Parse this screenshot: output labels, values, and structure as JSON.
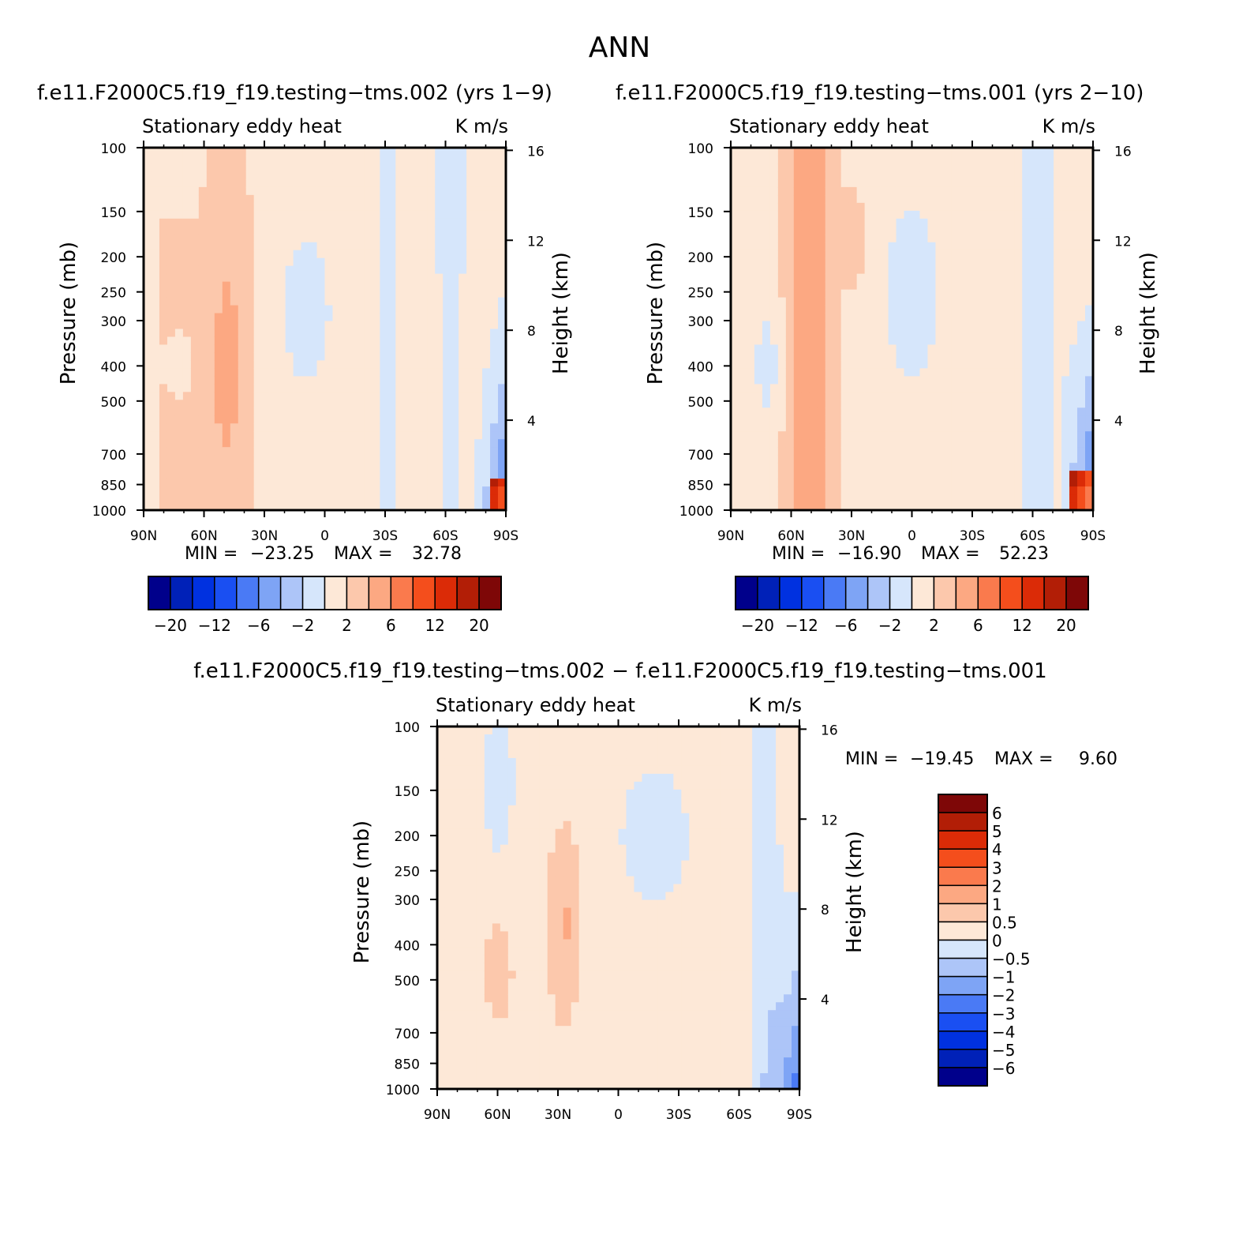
{
  "figure": {
    "title": "ANN",
    "panel_titles": [
      "f.e11.F2000C5.f19_f19.testing−tms.002 (yrs 1−9)",
      "f.e11.F2000C5.f19_f19.testing−tms.001 (yrs 2−10)",
      "f.e11.F2000C5.f19_f19.testing−tms.002 − f.e11.F2000C5.f19_f19.testing−tms.001"
    ]
  },
  "chart_data": [
    {
      "type": "heatmap",
      "variable": "Stationary eddy heat",
      "units": "K m/s",
      "xlabel": "",
      "ylabel": "Pressure (mb)",
      "ylabel_right": "Height (km)",
      "x_ticks": [
        "90N",
        "60N",
        "30N",
        "0",
        "30S",
        "60S",
        "90S"
      ],
      "y_ticks": [
        100,
        150,
        200,
        250,
        300,
        400,
        500,
        700,
        850,
        1000
      ],
      "y_ticks_right": [
        16,
        12,
        8,
        4
      ],
      "stats": {
        "min_label": "MIN =",
        "min": "−23.25",
        "max_label": "MAX =",
        "max": "32.78"
      },
      "colorbar": {
        "orientation": "horizontal",
        "labels": [
          "−20",
          "−12",
          "−6",
          "−2",
          "2",
          "6",
          "12",
          "20"
        ],
        "colors": [
          "#00008b",
          "#0021b8",
          "#0031e0",
          "#1a4ff2",
          "#4a7af5",
          "#7ea4f5",
          "#adc5f8",
          "#d6e6fb",
          "#fde8d7",
          "#fcc8ac",
          "#fca882",
          "#fa7a4d",
          "#f44e1c",
          "#db2b07",
          "#b21e06",
          "#7e0707"
        ]
      }
    },
    {
      "type": "heatmap",
      "variable": "Stationary eddy heat",
      "units": "K m/s",
      "xlabel": "",
      "ylabel": "Pressure (mb)",
      "ylabel_right": "Height (km)",
      "x_ticks": [
        "90N",
        "60N",
        "30N",
        "0",
        "30S",
        "60S",
        "90S"
      ],
      "y_ticks": [
        100,
        150,
        200,
        250,
        300,
        400,
        500,
        700,
        850,
        1000
      ],
      "y_ticks_right": [
        16,
        12,
        8,
        4
      ],
      "stats": {
        "min_label": "MIN =",
        "min": "−16.90",
        "max_label": "MAX =",
        "max": "52.23"
      },
      "colorbar": {
        "orientation": "horizontal",
        "labels": [
          "−20",
          "−12",
          "−6",
          "−2",
          "2",
          "6",
          "12",
          "20"
        ],
        "colors": [
          "#00008b",
          "#0021b8",
          "#0031e0",
          "#1a4ff2",
          "#4a7af5",
          "#7ea4f5",
          "#adc5f8",
          "#d6e6fb",
          "#fde8d7",
          "#fcc8ac",
          "#fca882",
          "#fa7a4d",
          "#f44e1c",
          "#db2b07",
          "#b21e06",
          "#7e0707"
        ]
      }
    },
    {
      "type": "heatmap",
      "variable": "Stationary eddy heat",
      "units": "K m/s",
      "xlabel": "",
      "ylabel": "Pressure (mb)",
      "ylabel_right": "Height (km)",
      "x_ticks": [
        "90N",
        "60N",
        "30N",
        "0",
        "30S",
        "60S",
        "90S"
      ],
      "y_ticks": [
        100,
        150,
        200,
        250,
        300,
        400,
        500,
        700,
        850,
        1000
      ],
      "y_ticks_right": [
        16,
        12,
        8,
        4
      ],
      "stats": {
        "min_label": "MIN =",
        "min": "−19.45",
        "max_label": "MAX =",
        "max": "9.60"
      },
      "colorbar": {
        "orientation": "vertical",
        "labels": [
          "6",
          "5",
          "4",
          "3",
          "2",
          "1",
          "0.5",
          "0",
          "−0.5",
          "−1",
          "−2",
          "−3",
          "−4",
          "−5",
          "−6"
        ],
        "colors": [
          "#7e0707",
          "#b21e06",
          "#db2b07",
          "#f44e1c",
          "#fa7a4d",
          "#fca882",
          "#fcc8ac",
          "#fde8d7",
          "#d6e6fb",
          "#adc5f8",
          "#7ea4f5",
          "#4a7af5",
          "#1a4ff2",
          "#0031e0",
          "#0021b8",
          "#00008b"
        ]
      }
    }
  ]
}
